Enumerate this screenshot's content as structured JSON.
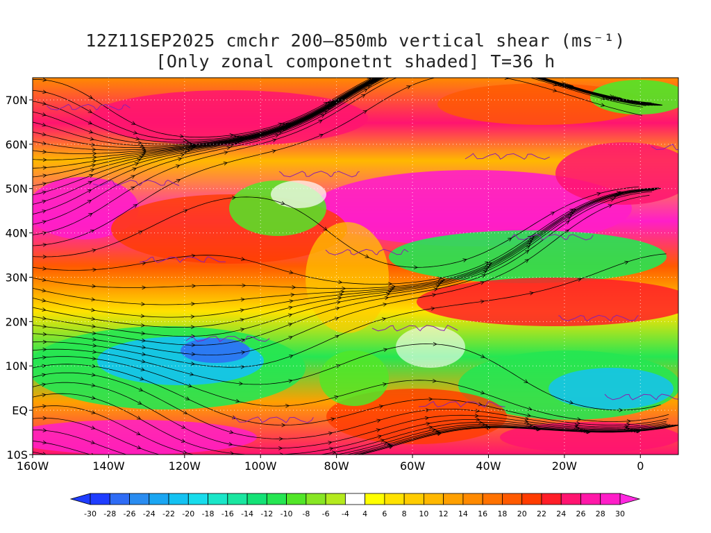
{
  "title": {
    "line1": "12Z11SEP2025 cmchr 200–850mb vertical shear (ms⁻¹)",
    "line2": "[Only zonal componetnt shaded] T=36 h"
  },
  "map": {
    "lat_labels": [
      "70N",
      "60N",
      "50N",
      "40N",
      "30N",
      "20N",
      "10N",
      "EQ",
      "10S"
    ],
    "lat_values": [
      70,
      60,
      50,
      40,
      30,
      20,
      10,
      0,
      -10
    ],
    "lon_labels": [
      "160W",
      "140W",
      "120W",
      "100W",
      "80W",
      "60W",
      "40W",
      "20W",
      "0"
    ],
    "lon_values": [
      -160,
      -140,
      -120,
      -100,
      -80,
      -60,
      -40,
      -20,
      0
    ],
    "lon_range": [
      -160,
      10
    ],
    "lat_range": [
      -10,
      75
    ],
    "streamline_color": "#000000",
    "contour_color": "#8a1fb0"
  },
  "colorbar": {
    "labels": [
      "-30",
      "-28",
      "-26",
      "-24",
      "-22",
      "-20",
      "-18",
      "-16",
      "-14",
      "-12",
      "-10",
      "-8",
      "-6",
      "-4",
      "4",
      "6",
      "8",
      "10",
      "12",
      "14",
      "16",
      "18",
      "20",
      "22",
      "24",
      "26",
      "28",
      "30"
    ],
    "colors": [
      "#1f3dff",
      "#2f6cf5",
      "#2a8cf0",
      "#1aa6f2",
      "#14c2f2",
      "#18dcec",
      "#1ae6c8",
      "#1ae6a0",
      "#14e276",
      "#26e652",
      "#52e628",
      "#88e624",
      "#b4ea1e",
      "#ffffff",
      "#ffff00",
      "#ffe200",
      "#ffcc00",
      "#ffb800",
      "#ffa000",
      "#ff8a00",
      "#ff7200",
      "#ff5a00",
      "#ff3c00",
      "#ff1e28",
      "#ff1470",
      "#ff18a8",
      "#ff1ec8"
    ],
    "left_arrow_color": "#1f3dff",
    "right_arrow_color": "#ff28e0"
  }
}
